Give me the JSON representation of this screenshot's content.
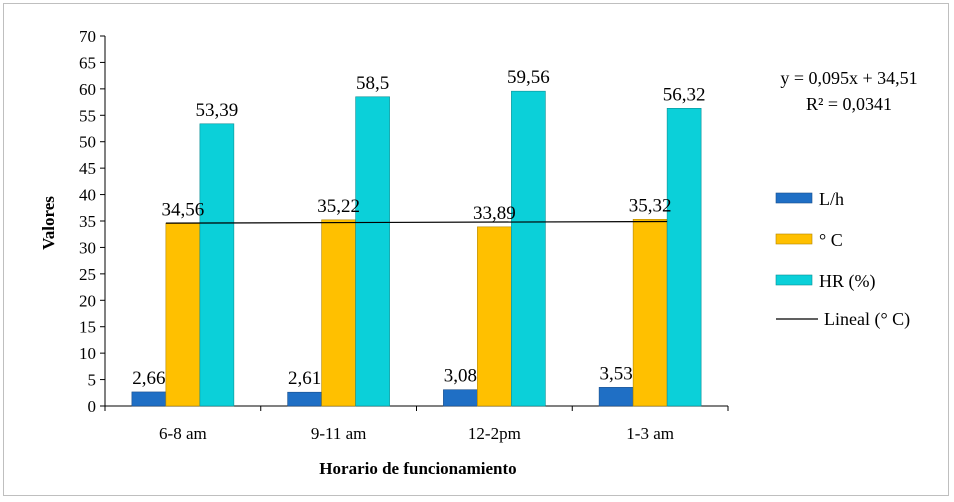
{
  "chart_data": {
    "type": "bar",
    "title": "",
    "xlabel": "Horario de funcionamiento",
    "ylabel": "Valores",
    "ylim": [
      0,
      70
    ],
    "ytick_step": 5,
    "categories": [
      "6-8 am",
      "9-11 am",
      "12-2pm",
      "1-3 am"
    ],
    "series": [
      {
        "name": "L/h",
        "color": "#1f6fc5",
        "values": [
          2.66,
          2.61,
          3.08,
          3.53
        ],
        "labels": [
          "2,66",
          "2,61",
          "3,08",
          "3,53"
        ]
      },
      {
        "name": "° C",
        "color": "#ffc000",
        "values": [
          34.56,
          35.22,
          33.89,
          35.32
        ],
        "labels": [
          "34,56",
          "35,22",
          "33,89",
          "35,32"
        ]
      },
      {
        "name": "HR (%)",
        "color": "#0bd0d9",
        "values": [
          53.39,
          58.5,
          59.56,
          56.32
        ],
        "labels": [
          "53,39",
          "58,5",
          "59,56",
          "56,32"
        ]
      }
    ],
    "trendline": {
      "name": "Lineal (° C)",
      "series": "° C",
      "slope": 0.095,
      "intercept": 34.51,
      "color": "#000000",
      "equation": "y = 0,095x + 34,51",
      "r2": "R² = 0,0341"
    },
    "legend": "right",
    "grid": false
  }
}
